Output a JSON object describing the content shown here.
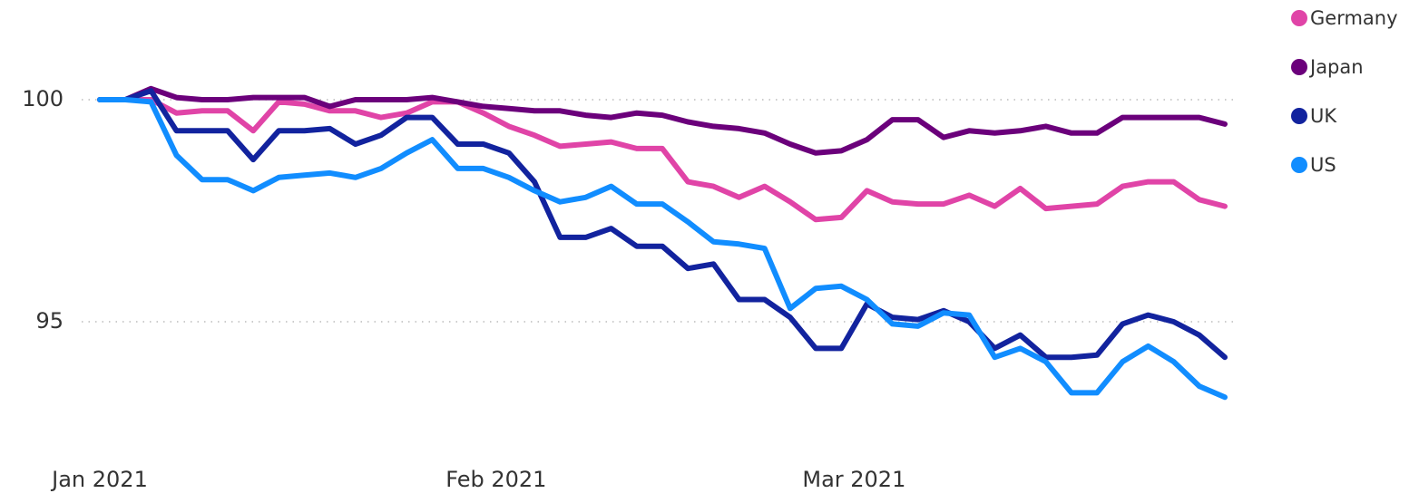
{
  "chart_data": {
    "type": "line",
    "x": [
      0,
      2,
      4,
      6,
      8,
      10,
      12,
      14,
      16,
      18,
      20,
      22,
      24,
      26,
      28,
      30,
      32,
      34,
      36,
      38,
      40,
      42,
      44,
      46,
      48,
      50,
      52,
      54,
      56,
      58,
      60,
      62,
      64,
      66,
      68,
      70,
      72,
      74,
      76,
      78,
      80,
      82,
      84,
      86,
      88
    ],
    "xlim": [
      0,
      88
    ],
    "xticks": [
      {
        "value": 0,
        "label": "Jan 2021"
      },
      {
        "value": 31,
        "label": "Feb 2021"
      },
      {
        "value": 59,
        "label": "Mar 2021"
      }
    ],
    "ylim": [
      92.5,
      101.5
    ],
    "yticks": [
      95,
      100
    ],
    "grid": true,
    "legend": "top-right",
    "series": [
      {
        "name": "Germany",
        "color": "#e044a7",
        "values": [
          100,
          100,
          100,
          99.7,
          99.75,
          99.75,
          99.3,
          99.95,
          99.9,
          99.75,
          99.75,
          99.6,
          99.7,
          99.95,
          99.95,
          99.7,
          99.4,
          99.2,
          98.95,
          99.0,
          99.05,
          98.9,
          98.9,
          98.15,
          98.05,
          97.8,
          98.05,
          97.7,
          97.3,
          97.35,
          97.95,
          97.7,
          97.65,
          97.65,
          97.85,
          97.6,
          98.0,
          97.55,
          97.6,
          97.65,
          98.05,
          98.15,
          98.15,
          97.75,
          97.6
        ]
      },
      {
        "name": "Japan",
        "color": "#6b007b",
        "values": [
          100,
          100,
          100.25,
          100.05,
          100,
          100,
          100.05,
          100.05,
          100.05,
          99.85,
          100,
          100,
          100,
          100.05,
          99.95,
          99.85,
          99.8,
          99.75,
          99.75,
          99.65,
          99.6,
          99.7,
          99.65,
          99.5,
          99.4,
          99.35,
          99.25,
          99.0,
          98.8,
          98.85,
          99.1,
          99.55,
          99.55,
          99.15,
          99.3,
          99.25,
          99.3,
          99.4,
          99.25,
          99.25,
          99.6,
          99.6,
          99.6,
          99.6,
          99.45
        ]
      },
      {
        "name": "UK",
        "color": "#12239e",
        "values": [
          100,
          100,
          100.2,
          99.3,
          99.3,
          99.3,
          98.65,
          99.3,
          99.3,
          99.35,
          99.0,
          99.2,
          99.6,
          99.6,
          99.0,
          99.0,
          98.8,
          98.15,
          96.9,
          96.9,
          97.1,
          96.7,
          96.7,
          96.2,
          96.3,
          95.5,
          95.5,
          95.1,
          94.4,
          94.4,
          95.4,
          95.1,
          95.05,
          95.25,
          95.0,
          94.4,
          94.7,
          94.2,
          94.2,
          94.25,
          94.95,
          95.15,
          95.0,
          94.7,
          94.2
        ]
      },
      {
        "name": "US",
        "color": "#118dff",
        "values": [
          100,
          100,
          99.95,
          98.75,
          98.2,
          98.2,
          97.95,
          98.25,
          98.3,
          98.35,
          98.25,
          98.45,
          98.8,
          99.1,
          98.45,
          98.45,
          98.25,
          97.95,
          97.7,
          97.8,
          98.05,
          97.65,
          97.65,
          97.25,
          96.8,
          96.75,
          96.65,
          95.3,
          95.75,
          95.8,
          95.5,
          94.95,
          94.9,
          95.2,
          95.15,
          94.2,
          94.4,
          94.1,
          93.4,
          93.4,
          94.1,
          94.45,
          94.1,
          93.55,
          93.3
        ]
      }
    ]
  }
}
